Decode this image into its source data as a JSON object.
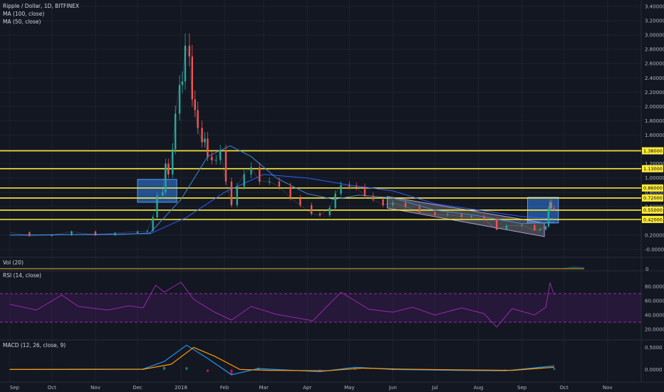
{
  "header": {
    "title": "Ripple / Dollar, 1D, BITFINEX",
    "ma100": "MA (100, close)",
    "ma50": "MA (50, close)"
  },
  "panes": {
    "vol_label": "Vol (20)",
    "rsi_label": "RSI (14, close)",
    "macd_label": "MACD (12, 26, close, 9)"
  },
  "colors": {
    "background": "#131722",
    "up": "#26a69a",
    "down": "#ef5350",
    "ma100": "#2962ff",
    "ma50": "#3d8bd6",
    "level": "#ffeb3b",
    "box": "#2f80ed",
    "rsi": "#9c27b0",
    "macd": "#2196f3",
    "signal": "#ff9800"
  },
  "chart_data": {
    "type": "candlestick",
    "symbol": "XRPUSD",
    "price_axis": {
      "ticks": [
        "3.40000",
        "3.20000",
        "3.00000",
        "2.80000",
        "2.60000",
        "2.40000",
        "2.20000",
        "2.00000",
        "1.80000",
        "1.60000",
        "1.40000",
        "1.20000",
        "1.00000",
        "0.80000",
        "0.60000",
        "0.40000",
        "0.20000",
        "-0.00000"
      ],
      "ylim": [
        -0.02,
        3.44
      ]
    },
    "x_axis": {
      "ticks": [
        "Sep",
        "Oct",
        "Nov",
        "Dec",
        "2018",
        "Feb",
        "Mar",
        "Apr",
        "May",
        "Jun",
        "Jul",
        "Aug",
        "Sep",
        "Oct",
        "Nov"
      ]
    },
    "levels": [
      {
        "label": "1.38000",
        "value": 1.38
      },
      {
        "label": "1.13000",
        "value": 1.13
      },
      {
        "label": "0.86000",
        "value": 0.86
      },
      {
        "label": "0.72000",
        "value": 0.72
      },
      {
        "label": "0.55000",
        "value": 0.55
      },
      {
        "label": "0.42000",
        "value": 0.42
      }
    ],
    "price_series": [
      [
        "2017-09-01",
        0.24
      ],
      [
        "2017-09-15",
        0.19
      ],
      [
        "2017-10-01",
        0.2
      ],
      [
        "2017-10-15",
        0.25
      ],
      [
        "2017-11-01",
        0.2
      ],
      [
        "2017-11-15",
        0.23
      ],
      [
        "2017-12-01",
        0.25
      ],
      [
        "2017-12-08",
        0.26
      ],
      [
        "2017-12-12",
        0.45
      ],
      [
        "2017-12-15",
        0.75
      ],
      [
        "2017-12-19",
        0.8
      ],
      [
        "2017-12-21",
        1.2
      ],
      [
        "2017-12-23",
        1.05
      ],
      [
        "2017-12-26",
        1.4
      ],
      [
        "2017-12-28",
        1.9
      ],
      [
        "2017-12-31",
        2.3
      ],
      [
        "2018-01-02",
        2.35
      ],
      [
        "2018-01-04",
        2.85
      ],
      [
        "2018-01-07",
        2.7
      ],
      [
        "2018-01-09",
        2.1
      ],
      [
        "2018-01-11",
        1.95
      ],
      [
        "2018-01-13",
        1.7
      ],
      [
        "2018-01-16",
        1.5
      ],
      [
        "2018-01-18",
        1.55
      ],
      [
        "2018-01-20",
        1.3
      ],
      [
        "2018-01-23",
        1.25
      ],
      [
        "2018-01-26",
        1.25
      ],
      [
        "2018-01-29",
        1.38
      ],
      [
        "2018-02-02",
        0.95
      ],
      [
        "2018-02-06",
        0.62
      ],
      [
        "2018-02-10",
        0.88
      ],
      [
        "2018-02-15",
        1.05
      ],
      [
        "2018-02-20",
        1.15
      ],
      [
        "2018-02-26",
        0.95
      ],
      [
        "2018-03-05",
        0.95
      ],
      [
        "2018-03-12",
        0.88
      ],
      [
        "2018-03-20",
        0.72
      ],
      [
        "2018-03-27",
        0.62
      ],
      [
        "2018-04-04",
        0.5
      ],
      [
        "2018-04-10",
        0.48
      ],
      [
        "2018-04-17",
        0.58
      ],
      [
        "2018-04-21",
        0.78
      ],
      [
        "2018-04-25",
        0.9
      ],
      [
        "2018-05-01",
        0.88
      ],
      [
        "2018-05-06",
        0.87
      ],
      [
        "2018-05-12",
        0.75
      ],
      [
        "2018-05-18",
        0.7
      ],
      [
        "2018-05-25",
        0.62
      ],
      [
        "2018-06-01",
        0.65
      ],
      [
        "2018-06-10",
        0.6
      ],
      [
        "2018-06-20",
        0.52
      ],
      [
        "2018-07-01",
        0.48
      ],
      [
        "2018-07-10",
        0.49
      ],
      [
        "2018-07-20",
        0.46
      ],
      [
        "2018-07-27",
        0.46
      ],
      [
        "2018-08-05",
        0.42
      ],
      [
        "2018-08-14",
        0.28
      ],
      [
        "2018-08-21",
        0.33
      ],
      [
        "2018-09-01",
        0.34
      ],
      [
        "2018-09-10",
        0.27
      ],
      [
        "2018-09-14",
        0.28
      ],
      [
        "2018-09-18",
        0.32
      ],
      [
        "2018-09-20",
        0.57
      ],
      [
        "2018-09-21",
        0.66
      ],
      [
        "2018-09-22",
        0.58
      ],
      [
        "2018-09-24",
        0.57
      ]
    ],
    "ma50": [
      [
        "2017-09-01",
        0.2
      ],
      [
        "2017-11-20",
        0.21
      ],
      [
        "2017-12-10",
        0.23
      ],
      [
        "2018-01-01",
        0.7
      ],
      [
        "2018-01-20",
        1.3
      ],
      [
        "2018-02-05",
        1.45
      ],
      [
        "2018-02-20",
        1.3
      ],
      [
        "2018-03-10",
        1.0
      ],
      [
        "2018-04-01",
        0.78
      ],
      [
        "2018-04-20",
        0.7
      ],
      [
        "2018-05-08",
        0.76
      ],
      [
        "2018-06-01",
        0.72
      ],
      [
        "2018-07-01",
        0.55
      ],
      [
        "2018-08-01",
        0.47
      ],
      [
        "2018-09-01",
        0.36
      ],
      [
        "2018-09-24",
        0.38
      ]
    ],
    "ma100": [
      [
        "2017-09-01",
        0.2
      ],
      [
        "2017-12-10",
        0.22
      ],
      [
        "2018-01-05",
        0.45
      ],
      [
        "2018-02-01",
        0.8
      ],
      [
        "2018-03-01",
        1.05
      ],
      [
        "2018-04-01",
        1.0
      ],
      [
        "2018-05-01",
        0.9
      ],
      [
        "2018-06-01",
        0.82
      ],
      [
        "2018-07-01",
        0.64
      ],
      [
        "2018-08-01",
        0.55
      ],
      [
        "2018-09-01",
        0.46
      ],
      [
        "2018-09-24",
        0.43
      ]
    ],
    "rsi": {
      "ticks": [
        "80.0000",
        "60.0000",
        "40.0000",
        "20.0000"
      ],
      "band": [
        30,
        70
      ],
      "ylim": [
        12,
        92
      ],
      "values": [
        [
          "2017-09-01",
          55
        ],
        [
          "2017-09-20",
          47
        ],
        [
          "2017-10-08",
          68
        ],
        [
          "2017-10-20",
          52
        ],
        [
          "2017-11-10",
          47
        ],
        [
          "2017-11-25",
          53
        ],
        [
          "2017-12-05",
          50
        ],
        [
          "2017-12-14",
          82
        ],
        [
          "2017-12-20",
          72
        ],
        [
          "2018-01-01",
          86
        ],
        [
          "2018-01-10",
          62
        ],
        [
          "2018-01-25",
          44
        ],
        [
          "2018-02-06",
          33
        ],
        [
          "2018-02-20",
          52
        ],
        [
          "2018-03-10",
          41
        ],
        [
          "2018-04-05",
          32
        ],
        [
          "2018-04-25",
          72
        ],
        [
          "2018-05-15",
          48
        ],
        [
          "2018-06-01",
          44
        ],
        [
          "2018-06-15",
          51
        ],
        [
          "2018-07-01",
          40
        ],
        [
          "2018-07-20",
          50
        ],
        [
          "2018-08-05",
          42
        ],
        [
          "2018-08-14",
          23
        ],
        [
          "2018-08-25",
          49
        ],
        [
          "2018-09-10",
          40
        ],
        [
          "2018-09-18",
          51
        ],
        [
          "2018-09-21",
          85
        ],
        [
          "2018-09-24",
          68
        ]
      ]
    },
    "macd": {
      "ticks": [
        "0.5000",
        "0.0000"
      ],
      "ylim": [
        -0.22,
        0.62
      ],
      "macd": [
        [
          "2017-09-01",
          0.0
        ],
        [
          "2017-12-05",
          0.01
        ],
        [
          "2017-12-20",
          0.18
        ],
        [
          "2018-01-05",
          0.55
        ],
        [
          "2018-01-20",
          0.25
        ],
        [
          "2018-02-06",
          -0.12
        ],
        [
          "2018-02-25",
          0.02
        ],
        [
          "2018-04-10",
          -0.05
        ],
        [
          "2018-05-05",
          0.05
        ],
        [
          "2018-06-01",
          0.0
        ],
        [
          "2018-07-15",
          -0.02
        ],
        [
          "2018-08-20",
          -0.03
        ],
        [
          "2018-09-24",
          0.08
        ]
      ],
      "signal": [
        [
          "2017-09-01",
          0.0
        ],
        [
          "2017-12-05",
          0.005
        ],
        [
          "2017-12-25",
          0.12
        ],
        [
          "2018-01-10",
          0.5
        ],
        [
          "2018-01-25",
          0.3
        ],
        [
          "2018-02-12",
          0.0
        ],
        [
          "2018-03-05",
          -0.02
        ],
        [
          "2018-04-15",
          -0.03
        ],
        [
          "2018-05-10",
          0.03
        ],
        [
          "2018-06-05",
          0.01
        ],
        [
          "2018-07-20",
          -0.01
        ],
        [
          "2018-08-25",
          -0.02
        ],
        [
          "2018-09-24",
          0.05
        ]
      ]
    },
    "boxes": [
      {
        "from": "2017-12-01",
        "to": "2017-12-29",
        "top": 0.98,
        "bottom": 0.66
      },
      {
        "from": "2018-09-05",
        "to": "2018-09-27",
        "top": 0.73,
        "bottom": 0.37
      }
    ],
    "channel": {
      "upper": [
        [
          "2018-05-28",
          0.74
        ],
        [
          "2018-09-17",
          0.37
        ]
      ],
      "lower": [
        [
          "2018-05-28",
          0.58
        ],
        [
          "2018-09-17",
          0.18
        ]
      ]
    }
  }
}
